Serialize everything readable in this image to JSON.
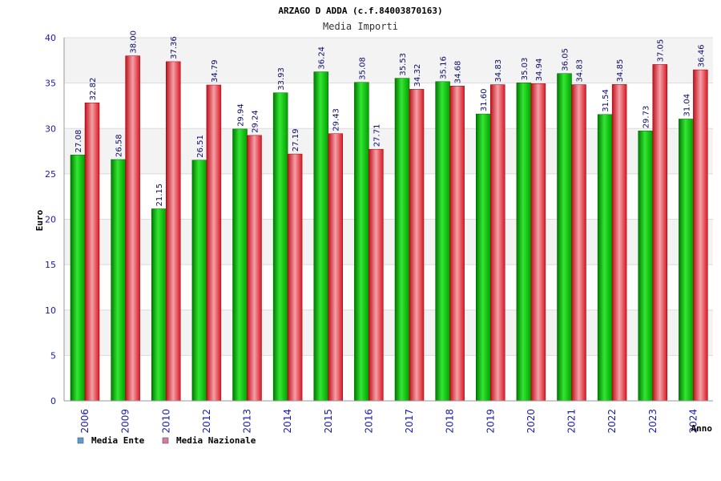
{
  "chart_data": {
    "type": "bar",
    "title": "ARZAGO D ADDA (c.f.84003870163)",
    "subtitle": "Media Importi",
    "ylabel": "Euro",
    "xlabel": "Anno",
    "ylim": [
      0,
      40
    ],
    "yticks": [
      0,
      5,
      10,
      15,
      20,
      25,
      30,
      35,
      40
    ],
    "grid": true,
    "legend_position": "bottom-left",
    "categories": [
      "2006",
      "2009",
      "2010",
      "2012",
      "2013",
      "2014",
      "2015",
      "2016",
      "2017",
      "2018",
      "2019",
      "2020",
      "2021",
      "2022",
      "2023",
      "2024"
    ],
    "series": [
      {
        "name": "Media Ente",
        "color": "#00b000",
        "legend_color": "#5b9bd5",
        "values": [
          27.08,
          26.58,
          21.15,
          26.51,
          29.94,
          33.93,
          36.24,
          35.08,
          35.53,
          35.16,
          31.6,
          35.03,
          36.05,
          31.54,
          29.73,
          31.04
        ],
        "labels": [
          "27.08",
          "26.58",
          "21.15",
          "26.51",
          "29.94",
          "33.93",
          "36.24",
          "35.08",
          "35.53",
          "35.16",
          "31.60",
          "35.03",
          "36.05",
          "31.54",
          "29.73",
          "31.04"
        ]
      },
      {
        "name": "Media Nazionale",
        "color": "#e0202a",
        "legend_color": "#d87aa8",
        "values": [
          32.82,
          38.0,
          37.36,
          34.79,
          29.24,
          27.19,
          29.43,
          27.71,
          34.32,
          34.68,
          34.83,
          34.94,
          34.83,
          34.85,
          37.05,
          36.46
        ],
        "labels": [
          "32.82",
          "38.00",
          "37.36",
          "34.79",
          "29.24",
          "27.19",
          "29.43",
          "27.71",
          "34.32",
          "34.68",
          "34.83",
          "34.94",
          "34.83",
          "34.85",
          "37.05",
          "36.46"
        ]
      }
    ]
  }
}
